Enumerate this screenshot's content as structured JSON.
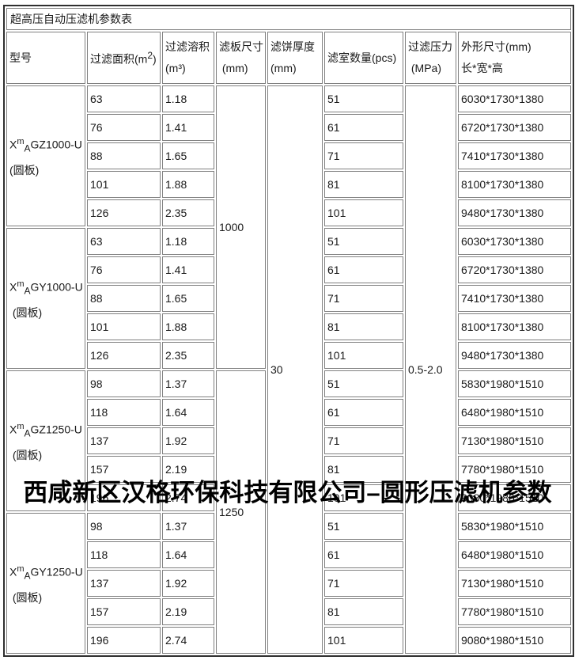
{
  "colors": {
    "background": "#ffffff",
    "outer_border": "#2f2f2f",
    "cell_border": "#808080",
    "text": "#1a1a1a",
    "watermark": "#000000"
  },
  "watermark": {
    "text": "西咸新区汉格环保科技有限公司–圆形压滤机参数"
  },
  "table": {
    "title": "超高压自动压滤机参数表",
    "header": {
      "model": {
        "line1": "型号"
      },
      "area": {
        "pre": "过滤面积(m",
        "sup": "2",
        "post": ")"
      },
      "volume": {
        "line1": "过滤溶积",
        "line2": "(m³)"
      },
      "plate": {
        "line1": "滤板尺寸",
        "line2": " (mm)"
      },
      "cake": {
        "line1": "滤饼厚度",
        "line2": "(mm)"
      },
      "chambers": {
        "line1": "滤室数量(pcs)"
      },
      "pressure": {
        "line1": "过滤压力",
        "line2": " (MPa)"
      },
      "dims": {
        "line1": "外形尺寸(mm)",
        "line2": "长*宽*高"
      }
    },
    "merged": {
      "plate_sizes": [
        {
          "value": "1000",
          "rows": 10
        },
        {
          "value": "1250",
          "rows": 10
        }
      ],
      "cake_thickness": {
        "value": "30",
        "rows": 20
      },
      "pressure": {
        "value": "0.5-2.0",
        "rows": 20
      }
    },
    "groups": [
      {
        "model": {
          "prefix": "X",
          "sup": "m",
          "sub": "A",
          "rest": "GZ1000-U"
        },
        "note": "(圆板)",
        "rows": [
          {
            "area": "63",
            "volume": "1.18",
            "chambers": "51",
            "dims": "6030*1730*1380"
          },
          {
            "area": "76",
            "volume": "1.41",
            "chambers": "61",
            "dims": "6720*1730*1380"
          },
          {
            "area": "88",
            "volume": "1.65",
            "chambers": "71",
            "dims": "7410*1730*1380"
          },
          {
            "area": "101",
            "volume": "1.88",
            "chambers": "81",
            "dims": "8100*1730*1380"
          },
          {
            "area": "126",
            "volume": "2.35",
            "chambers": "101",
            "dims": "9480*1730*1380"
          }
        ]
      },
      {
        "model": {
          "prefix": "X",
          "sup": "m",
          "sub": "A",
          "rest": "GY1000-U"
        },
        "note": " (圆板)",
        "rows": [
          {
            "area": "63",
            "volume": "1.18",
            "chambers": "51",
            "dims": "6030*1730*1380"
          },
          {
            "area": "76",
            "volume": "1.41",
            "chambers": "61",
            "dims": "6720*1730*1380"
          },
          {
            "area": "88",
            "volume": "1.65",
            "chambers": "71",
            "dims": "7410*1730*1380"
          },
          {
            "area": "101",
            "volume": "1.88",
            "chambers": "81",
            "dims": "8100*1730*1380"
          },
          {
            "area": "126",
            "volume": "2.35",
            "chambers": "101",
            "dims": "9480*1730*1380"
          }
        ]
      },
      {
        "model": {
          "prefix": "X",
          "sup": "m",
          "sub": "A",
          "rest": "GZ1250-U"
        },
        "note": " (圆板)",
        "rows": [
          {
            "area": "98",
            "volume": "1.37",
            "chambers": "51",
            "dims": "5830*1980*1510"
          },
          {
            "area": "118",
            "volume": "1.64",
            "chambers": "61",
            "dims": "6480*1980*1510"
          },
          {
            "area": "137",
            "volume": "1.92",
            "chambers": "71",
            "dims": "7130*1980*1510"
          },
          {
            "area": "157",
            "volume": "2.19",
            "chambers": "81",
            "dims": "7780*1980*1510"
          },
          {
            "area": "196",
            "volume": "2.74",
            "chambers": "101",
            "dims": "9080*1980*1510"
          }
        ]
      },
      {
        "model": {
          "prefix": "X",
          "sup": "m",
          "sub": "A",
          "rest": "GY1250-U"
        },
        "note": " (圆板)",
        "rows": [
          {
            "area": "98",
            "volume": "1.37",
            "chambers": "51",
            "dims": "5830*1980*1510"
          },
          {
            "area": "118",
            "volume": "1.64",
            "chambers": "61",
            "dims": "6480*1980*1510"
          },
          {
            "area": "137",
            "volume": "1.92",
            "chambers": "71",
            "dims": "7130*1980*1510"
          },
          {
            "area": "157",
            "volume": "2.19",
            "chambers": "81",
            "dims": "7780*1980*1510"
          },
          {
            "area": "196",
            "volume": "2.74",
            "chambers": "101",
            "dims": "9080*1980*1510"
          }
        ]
      }
    ]
  }
}
